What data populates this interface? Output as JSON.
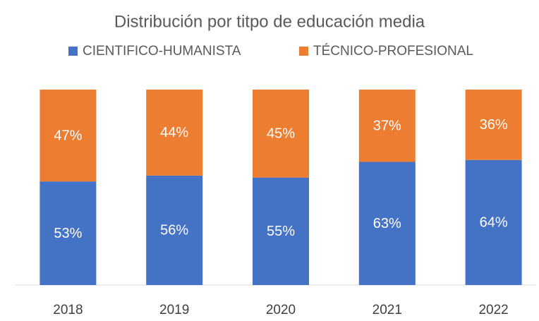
{
  "chart_data": {
    "type": "stacked_bar",
    "title": "Distribución por titpo de educación media",
    "categories": [
      "2018",
      "2019",
      "2020",
      "2021",
      "2022"
    ],
    "series": [
      {
        "name": "CIENTIFICO-HUMANISTA",
        "color": "#4472c4",
        "values": [
          53,
          56,
          55,
          63,
          64
        ],
        "value_labels": [
          "53%",
          "56%",
          "55%",
          "63%",
          "64%"
        ]
      },
      {
        "name": "TÉCNICO-PROFESIONAL",
        "color": "#ed7d31",
        "values": [
          47,
          44,
          45,
          37,
          36
        ],
        "value_labels": [
          "47%",
          "44%",
          "45%",
          "37%",
          "36%"
        ]
      }
    ],
    "ylim": [
      0,
      100
    ],
    "legend": "top"
  }
}
